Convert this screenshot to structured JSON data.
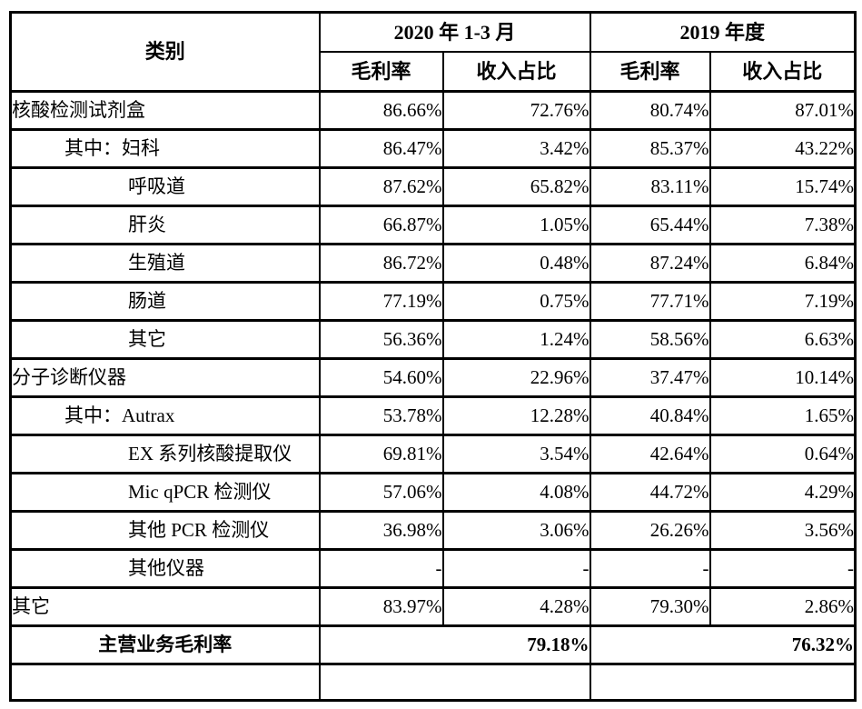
{
  "colors": {
    "border": "#000000",
    "text": "#000000",
    "background": "#ffffff"
  },
  "table": {
    "header": {
      "category": "类别",
      "col_groups": [
        {
          "label": "2020 年 1-3 月"
        },
        {
          "label": "2019 年度"
        }
      ],
      "sub_cols": [
        "毛利率",
        "收入占比",
        "毛利率",
        "收入占比"
      ]
    },
    "rows": [
      {
        "label": "核酸检测试剂盒",
        "indent": 0,
        "values": [
          "86.66%",
          "72.76%",
          "80.74%",
          "87.01%"
        ]
      },
      {
        "label": "其中：妇科",
        "indent": 1,
        "values": [
          "86.47%",
          "3.42%",
          "85.37%",
          "43.22%"
        ]
      },
      {
        "label": "呼吸道",
        "indent": 2,
        "values": [
          "87.62%",
          "65.82%",
          "83.11%",
          "15.74%"
        ]
      },
      {
        "label": "肝炎",
        "indent": 2,
        "values": [
          "66.87%",
          "1.05%",
          "65.44%",
          "7.38%"
        ]
      },
      {
        "label": "生殖道",
        "indent": 2,
        "values": [
          "86.72%",
          "0.48%",
          "87.24%",
          "6.84%"
        ]
      },
      {
        "label": "肠道",
        "indent": 2,
        "values": [
          "77.19%",
          "0.75%",
          "77.71%",
          "7.19%"
        ]
      },
      {
        "label": "其它",
        "indent": 2,
        "values": [
          "56.36%",
          "1.24%",
          "58.56%",
          "6.63%"
        ]
      },
      {
        "label": "分子诊断仪器",
        "indent": 0,
        "values": [
          "54.60%",
          "22.96%",
          "37.47%",
          "10.14%"
        ]
      },
      {
        "label": "其中：Autrax",
        "indent": 1,
        "values": [
          "53.78%",
          "12.28%",
          "40.84%",
          "1.65%"
        ]
      },
      {
        "label": "EX 系列核酸提取仪",
        "indent": 2,
        "values": [
          "69.81%",
          "3.54%",
          "42.64%",
          "0.64%"
        ]
      },
      {
        "label": "Mic qPCR 检测仪",
        "indent": 2,
        "values": [
          "57.06%",
          "4.08%",
          "44.72%",
          "4.29%"
        ]
      },
      {
        "label": "其他 PCR 检测仪",
        "indent": 2,
        "values": [
          "36.98%",
          "3.06%",
          "26.26%",
          "3.56%"
        ]
      },
      {
        "label": "其他仪器",
        "indent": 2,
        "values": [
          "-",
          "-",
          "-",
          "-"
        ]
      },
      {
        "label": "其它",
        "indent": 0,
        "values": [
          "83.97%",
          "4.28%",
          "79.30%",
          "2.86%"
        ]
      }
    ],
    "total_row": {
      "label": "主营业务毛利率",
      "values": [
        "79.18%",
        "76.32%"
      ]
    }
  }
}
